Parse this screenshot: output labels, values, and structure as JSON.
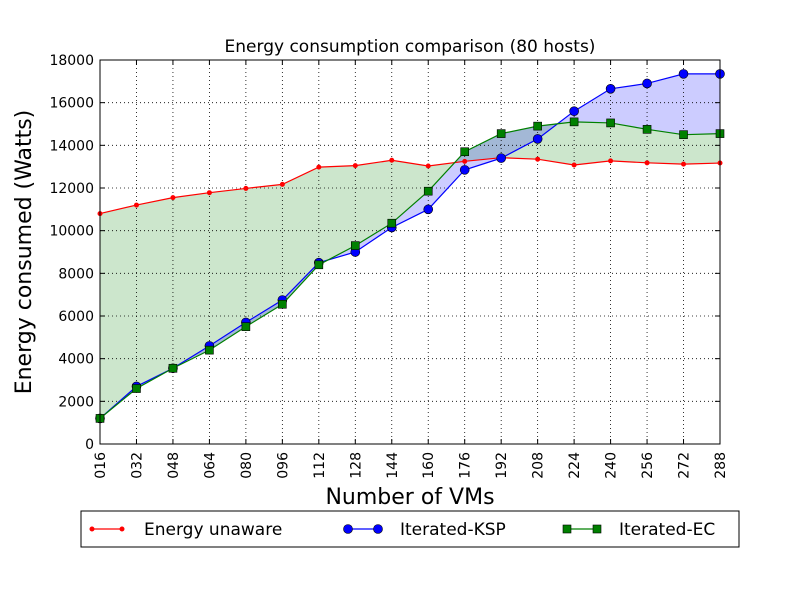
{
  "chart_data": {
    "type": "line",
    "title": "Energy consumption comparison (80 hosts)",
    "xlabel": "Number of VMs",
    "ylabel": "Energy consumed (Watts)",
    "categories": [
      "016",
      "032",
      "048",
      "064",
      "080",
      "096",
      "112",
      "128",
      "144",
      "160",
      "176",
      "192",
      "208",
      "224",
      "240",
      "256",
      "272",
      "288"
    ],
    "ylim": [
      0,
      18000
    ],
    "yticks": [
      0,
      2000,
      4000,
      6000,
      8000,
      10000,
      12000,
      14000,
      16000,
      18000
    ],
    "grid": true,
    "legend_position": "bottom",
    "series": [
      {
        "name": "Energy unaware",
        "color": "#ff0000",
        "marker": "dot",
        "values": [
          10800,
          11200,
          11550,
          11780,
          11980,
          12170,
          12980,
          13050,
          13300,
          13030,
          13250,
          13420,
          13350,
          13080,
          13270,
          13180,
          13120,
          13170
        ]
      },
      {
        "name": "Iterated-KSP",
        "color": "#0000ff",
        "marker": "circle",
        "values": [
          1200,
          2700,
          3550,
          4600,
          5700,
          6750,
          8500,
          9000,
          10150,
          11000,
          12850,
          13400,
          14300,
          15600,
          16650,
          16900,
          17350,
          17350
        ]
      },
      {
        "name": "Iterated-EC",
        "color": "#008000",
        "marker": "square",
        "values": [
          1200,
          2600,
          3550,
          4400,
          5500,
          6550,
          8400,
          9300,
          10350,
          11850,
          13700,
          14550,
          14900,
          15100,
          15050,
          14750,
          14500,
          14550
        ]
      }
    ],
    "fills": [
      {
        "between": [
          "Energy unaware",
          "Iterated-EC"
        ],
        "color": "#008000",
        "opacity": 0.2
      },
      {
        "between": [
          "Iterated-EC",
          "Iterated-KSP"
        ],
        "color": "#0000ff",
        "opacity": 0.2
      }
    ]
  }
}
